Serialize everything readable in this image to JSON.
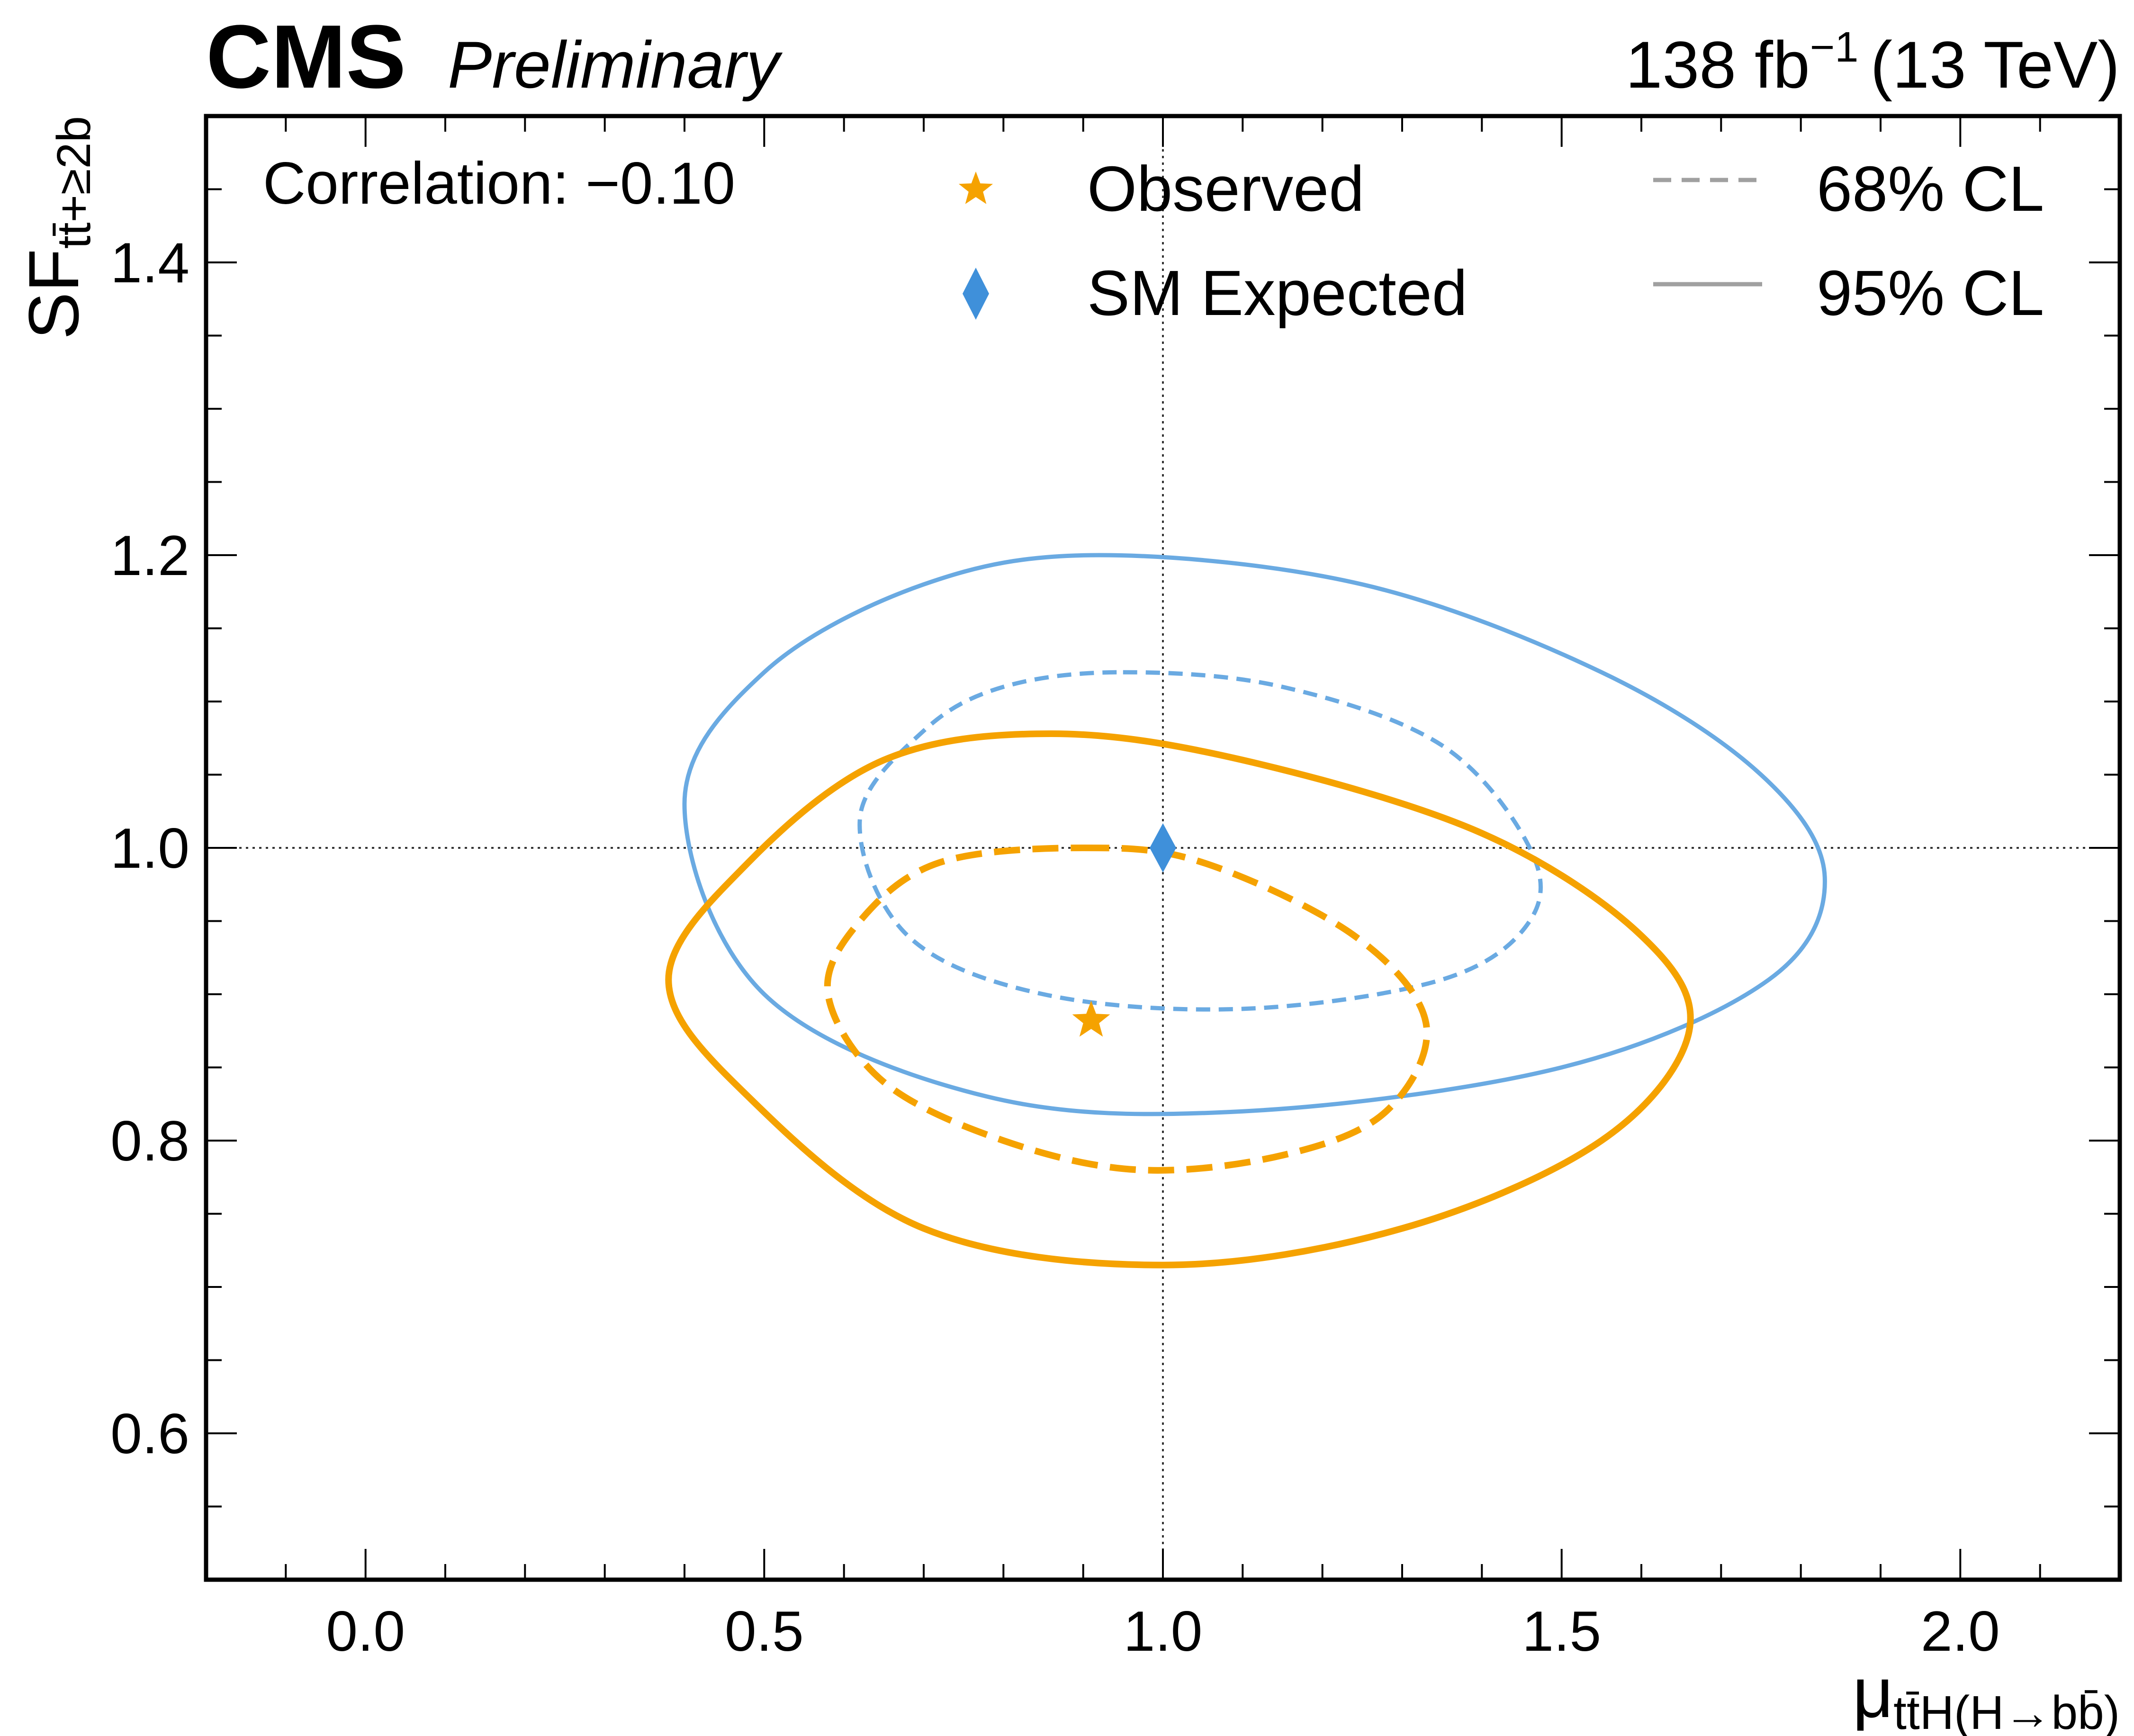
{
  "header": {
    "experiment": "CMS",
    "status": "Preliminary",
    "lumi": "138 fb",
    "lumi_exp": "−1",
    "energy": "(13 TeV)"
  },
  "chart_data": {
    "type": "scatter",
    "xlim": [
      -0.2,
      2.2
    ],
    "ylim": [
      0.5,
      1.5
    ],
    "xticks": [
      0.0,
      0.5,
      1.0,
      1.5,
      2.0
    ],
    "xtick_labels": [
      "0.0",
      "0.5",
      "1.0",
      "1.5",
      "2.0"
    ],
    "yticks": [
      0.6,
      0.8,
      1.0,
      1.2,
      1.4
    ],
    "ytick_labels": [
      "0.6",
      "0.8",
      "1.0",
      "1.2",
      "1.4"
    ],
    "xminor_step": 0.1,
    "yminor_step": 0.05,
    "xlabel": {
      "main": "μ",
      "sub": "tt̄H(H→bb̄)"
    },
    "ylabel": {
      "main": "SF",
      "sub": "tt̄+≥2b"
    },
    "grid": false,
    "reference_lines": {
      "x": 1.0,
      "y": 1.0
    },
    "annotation": "Correlation: −0.10",
    "legend": {
      "placement": "top",
      "entries": [
        {
          "label": "Observed",
          "marker": "star",
          "color": "#f5a200"
        },
        {
          "label": "SM Expected",
          "marker": "diamond",
          "color": "#3f90da"
        },
        {
          "label": "68% CL",
          "line": "dashed",
          "color": "#a0a0a0"
        },
        {
          "label": "95% CL",
          "line": "solid",
          "color": "#a0a0a0"
        }
      ]
    },
    "points": [
      {
        "name": "Observed",
        "marker": "star",
        "color": "#f5a200",
        "x": 0.91,
        "y": 0.882
      },
      {
        "name": "SM Expected",
        "marker": "diamond",
        "color": "#3f90da",
        "x": 1.0,
        "y": 1.0
      }
    ],
    "contours": [
      {
        "set": "SM Expected",
        "cl": "95% CL",
        "style": "solid",
        "color": "#6aaae2",
        "points": [
          [
            0.92,
            1.2
          ],
          [
            1.25,
            1.18
          ],
          [
            1.55,
            1.12
          ],
          [
            1.75,
            1.05
          ],
          [
            1.83,
            0.98
          ],
          [
            1.76,
            0.91
          ],
          [
            1.5,
            0.85
          ],
          [
            1.1,
            0.82
          ],
          [
            0.78,
            0.83
          ],
          [
            0.5,
            0.9
          ],
          [
            0.4,
            1.03
          ],
          [
            0.5,
            1.12
          ],
          [
            0.7,
            1.18
          ]
        ]
      },
      {
        "set": "SM Expected",
        "cl": "68% CL",
        "style": "dashed",
        "color": "#6aaae2",
        "points": [
          [
            0.95,
            1.12
          ],
          [
            1.15,
            1.11
          ],
          [
            1.35,
            1.07
          ],
          [
            1.46,
            1.0
          ],
          [
            1.46,
            0.95
          ],
          [
            1.35,
            0.91
          ],
          [
            1.1,
            0.89
          ],
          [
            0.85,
            0.9
          ],
          [
            0.68,
            0.94
          ],
          [
            0.62,
            1.02
          ],
          [
            0.7,
            1.08
          ],
          [
            0.8,
            1.11
          ]
        ]
      },
      {
        "set": "Observed",
        "cl": "95% CL",
        "style": "solid",
        "color": "#f5a200",
        "points": [
          [
            0.86,
            1.078
          ],
          [
            1.1,
            1.06
          ],
          [
            1.4,
            1.01
          ],
          [
            1.6,
            0.94
          ],
          [
            1.66,
            0.875
          ],
          [
            1.55,
            0.8
          ],
          [
            1.3,
            0.74
          ],
          [
            1.0,
            0.715
          ],
          [
            0.7,
            0.74
          ],
          [
            0.48,
            0.83
          ],
          [
            0.38,
            0.91
          ],
          [
            0.48,
            0.99
          ],
          [
            0.65,
            1.06
          ]
        ]
      },
      {
        "set": "Observed",
        "cl": "68% CL",
        "style": "dashed",
        "color": "#f5a200",
        "points": [
          [
            0.9,
            1.0
          ],
          [
            1.05,
            0.99
          ],
          [
            1.24,
            0.94
          ],
          [
            1.33,
            0.88
          ],
          [
            1.28,
            0.82
          ],
          [
            1.15,
            0.79
          ],
          [
            0.97,
            0.78
          ],
          [
            0.8,
            0.8
          ],
          [
            0.65,
            0.84
          ],
          [
            0.58,
            0.9
          ],
          [
            0.62,
            0.95
          ],
          [
            0.72,
            0.99
          ]
        ]
      }
    ]
  }
}
